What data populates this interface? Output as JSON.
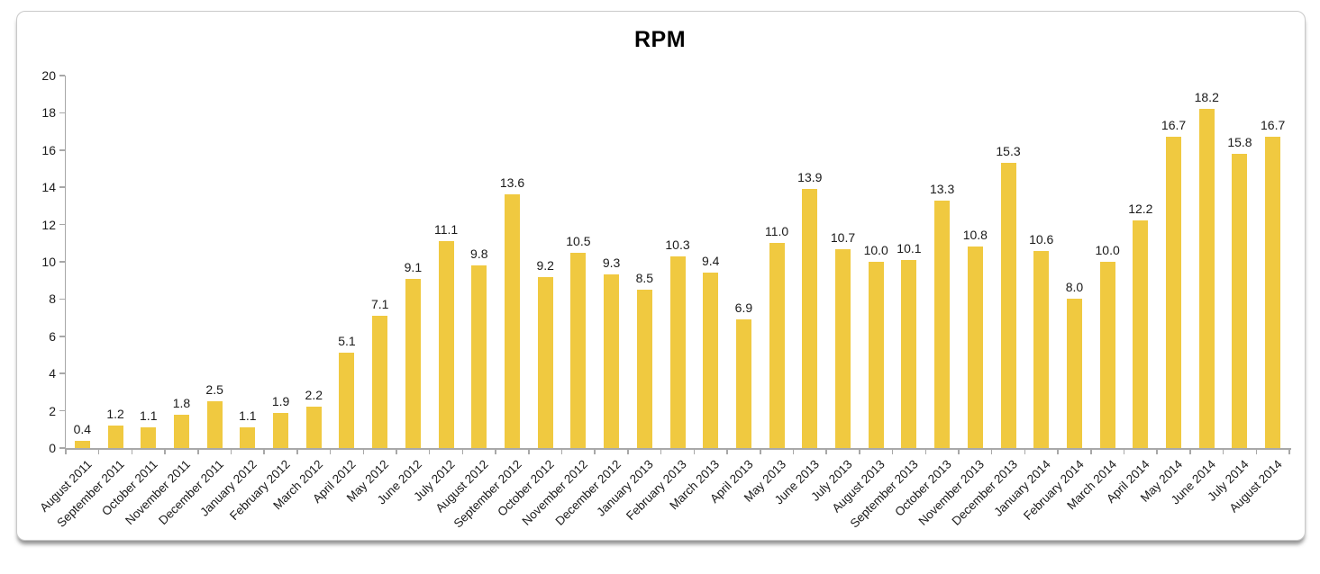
{
  "chart_data": {
    "type": "bar",
    "title": "RPM",
    "categories": [
      "August 2011",
      "September 2011",
      "October 2011",
      "November 2011",
      "December 2011",
      "January 2012",
      "February 2012",
      "March 2012",
      "April 2012",
      "May 2012",
      "June 2012",
      "July 2012",
      "August 2012",
      "September 2012",
      "October 2012",
      "November 2012",
      "December 2012",
      "January 2013",
      "February 2013",
      "March 2013",
      "April 2013",
      "May 2013",
      "June 2013",
      "July 2013",
      "August 2013",
      "September 2013",
      "October 2013",
      "November 2013",
      "December 2013",
      "January 2014",
      "February 2014",
      "March 2014",
      "April 2014",
      "May 2014",
      "June 2014",
      "July 2014",
      "August 2014"
    ],
    "values": [
      0.4,
      1.2,
      1.1,
      1.8,
      2.5,
      1.1,
      1.9,
      2.2,
      5.1,
      7.1,
      9.1,
      11.1,
      9.8,
      13.6,
      9.2,
      10.5,
      9.3,
      8.5,
      10.3,
      9.4,
      6.9,
      11.0,
      13.9,
      10.7,
      10.0,
      10.1,
      13.3,
      10.8,
      15.3,
      10.6,
      8.0,
      10.0,
      12.2,
      16.7,
      18.2,
      15.8,
      16.7
    ],
    "xlabel": "",
    "ylabel": "",
    "ylim": [
      0,
      20
    ],
    "ytick_step": 2,
    "grid": false,
    "legend": "none",
    "value_label_format": "one_decimal",
    "x_label_rotation_deg": -45,
    "colors": {
      "bar": "#F0C940",
      "axis": "#A8A8A8",
      "text": "#1A1A1A",
      "title": "#000000",
      "card_border": "#C9C9C9",
      "card_background": "#FFFFFF"
    }
  }
}
